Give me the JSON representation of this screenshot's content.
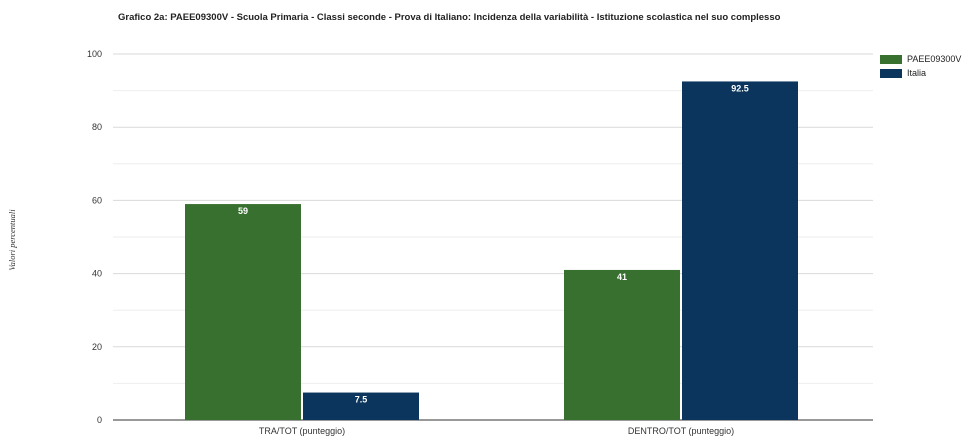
{
  "chart_data": {
    "type": "bar",
    "title": "Grafico 2a: PAEE09300V - Scuola Primaria - Classi seconde - Prova di Italiano: Incidenza della variabilità - Istituzione scolastica nel suo complesso",
    "xlabel": "",
    "ylabel": "Valori percentuali",
    "ylim": [
      0,
      100
    ],
    "yticks": [
      0,
      20,
      40,
      60,
      80,
      100
    ],
    "grid": true,
    "legend_position": "right",
    "categories": [
      "TRA/TOT (punteggio)",
      "DENTRO/TOT (punteggio)"
    ],
    "series": [
      {
        "name": "PAEE09300V",
        "color": "#38712f",
        "values": [
          59,
          41
        ],
        "labels": [
          "59",
          "41"
        ]
      },
      {
        "name": "Italia",
        "color": "#0b355c",
        "values": [
          7.5,
          92.5
        ],
        "labels": [
          "7.5",
          "92.5"
        ]
      }
    ]
  }
}
